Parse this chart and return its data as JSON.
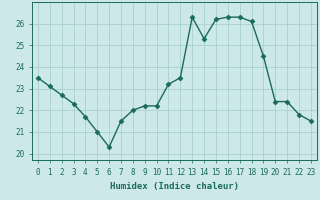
{
  "x": [
    0,
    1,
    2,
    3,
    4,
    5,
    6,
    7,
    8,
    9,
    10,
    11,
    12,
    13,
    14,
    15,
    16,
    17,
    18,
    19,
    20,
    21,
    22,
    23
  ],
  "y": [
    23.5,
    23.1,
    22.7,
    22.3,
    21.7,
    21.0,
    20.3,
    21.5,
    22.0,
    22.2,
    22.2,
    23.2,
    23.5,
    26.3,
    25.3,
    26.2,
    26.3,
    26.3,
    26.1,
    24.5,
    22.4,
    22.4,
    21.8,
    21.5
  ],
  "line_color": "#1a6b5a",
  "marker": "D",
  "markersize": 2.5,
  "linewidth": 1.0,
  "bg_color": "#cde8e8",
  "grid_color": "#a8d0cf",
  "xlabel": "Humidex (Indice chaleur)",
  "xlim": [
    -0.5,
    23.5
  ],
  "ylim": [
    19.7,
    27.0
  ],
  "yticks": [
    20,
    21,
    22,
    23,
    24,
    25,
    26
  ],
  "xticks": [
    0,
    1,
    2,
    3,
    4,
    5,
    6,
    7,
    8,
    9,
    10,
    11,
    12,
    13,
    14,
    15,
    16,
    17,
    18,
    19,
    20,
    21,
    22,
    23
  ],
  "tick_color": "#1a6b5a",
  "label_fontsize": 6.5,
  "tick_fontsize": 5.5
}
